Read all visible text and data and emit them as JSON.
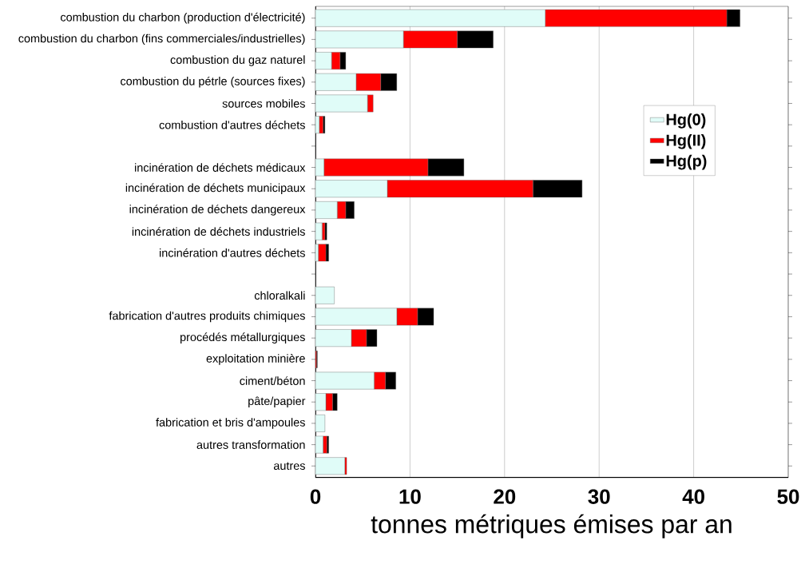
{
  "chart_data": {
    "type": "bar",
    "orientation": "horizontal",
    "stacked": true,
    "categories": [
      "combustion du charbon (production d'électricité)",
      "combustion du charbon (fins commerciales/industrielles)",
      "combustion du gaz naturel",
      "combustion du pétrle (sources fixes)",
      "sources mobiles",
      "combustion d'autres déchets",
      null,
      "incinération de déchets médicaux",
      "incinération de déchets municipaux",
      "incinération de déchets dangereux",
      "incinération de déchets industriels",
      "incinération d'autres déchets",
      null,
      "chloralkali",
      "fabrication d'autres produits chimiques",
      "procédés métallurgiques",
      "exploitation minière",
      "ciment/béton",
      "pâte/papier",
      "fabrication et bris d'ampoules",
      "autres transformation",
      "autres"
    ],
    "series": [
      {
        "name": "Hg(0)",
        "color": "#e0fcf8",
        "values": [
          24.3,
          9.3,
          1.7,
          4.3,
          5.5,
          0.4,
          null,
          0.9,
          7.6,
          2.3,
          0.7,
          0.3,
          null,
          2.0,
          8.6,
          3.8,
          0,
          6.2,
          1.1,
          1.0,
          0.8,
          3.1
        ]
      },
      {
        "name": "Hg(II)",
        "color": "#ff0000",
        "values": [
          19.2,
          5.7,
          0.9,
          2.6,
          0.6,
          0.4,
          null,
          11.0,
          15.4,
          0.9,
          0.3,
          0.8,
          null,
          0,
          2.2,
          1.6,
          0.1,
          1.2,
          0.7,
          0,
          0.4,
          0.2
        ]
      },
      {
        "name": "Hg(p)",
        "color": "#000000",
        "values": [
          1.4,
          3.8,
          0.6,
          1.7,
          0,
          0.2,
          null,
          3.8,
          5.2,
          0.9,
          0.2,
          0.3,
          null,
          0,
          1.7,
          1.1,
          0.1,
          1.1,
          0.5,
          0,
          0.2,
          0
        ]
      }
    ],
    "xlabel": "tonnes métriques émises par an",
    "xlim": [
      0,
      50
    ],
    "xticks": [
      0,
      10,
      20,
      30,
      40,
      50
    ],
    "grid": "x",
    "legend": "right"
  }
}
